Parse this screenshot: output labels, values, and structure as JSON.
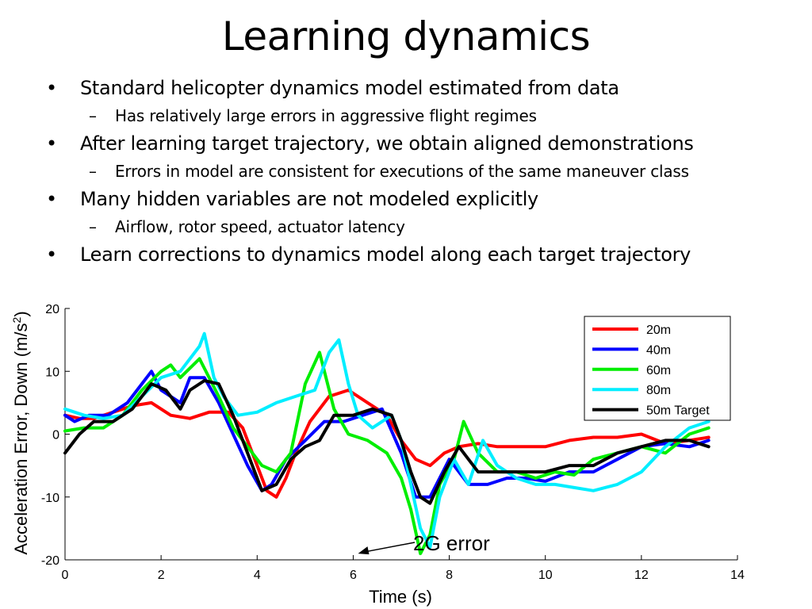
{
  "slide": {
    "title": "Learning dynamics",
    "bullets": [
      {
        "text": "Standard helicopter dynamics model estimated from data",
        "sub": [
          "Has relatively large errors in aggressive flight regimes"
        ]
      },
      {
        "text": "After learning target trajectory, we obtain aligned demonstrations",
        "sub": [
          "Errors in model are consistent for executions of the same maneuver class"
        ]
      },
      {
        "text": "Many hidden variables are not modeled explicitly",
        "sub": [
          "Airflow, rotor speed, actuator latency"
        ]
      },
      {
        "text": "Learn corrections to dynamics model along each target trajectory",
        "sub": []
      }
    ],
    "bullet_symbol": "•",
    "sub_symbol": "–"
  },
  "chart_data": {
    "type": "line",
    "xlabel": "Time (s)",
    "ylabel_main": "Acceleration Error, Down (m/s",
    "ylabel_sup": "2",
    "ylabel_close": ")",
    "xlim": [
      0,
      14
    ],
    "ylim": [
      -20,
      20
    ],
    "xticks": [
      0,
      2,
      4,
      6,
      8,
      10,
      12,
      14
    ],
    "yticks": [
      -20,
      -10,
      0,
      10,
      20
    ],
    "grid": false,
    "legend_position": "top-right",
    "annotation": {
      "text": "2G error",
      "arrow_to": [
        6.1,
        -19
      ]
    },
    "series": [
      {
        "name": "20m",
        "color": "#ff0000",
        "x": [
          0,
          0.3,
          0.6,
          1.0,
          1.4,
          1.8,
          2.2,
          2.6,
          3.0,
          3.4,
          3.7,
          4.0,
          4.2,
          4.4,
          4.6,
          4.8,
          5.1,
          5.5,
          5.9,
          6.3,
          6.7,
          7.0,
          7.3,
          7.6,
          7.9,
          8.2,
          8.6,
          9.0,
          9.5,
          10.0,
          10.5,
          11.0,
          11.5,
          12.0,
          12.5,
          13.0,
          13.4
        ],
        "y": [
          3,
          2.5,
          2.5,
          3.5,
          4.5,
          5,
          3,
          2.5,
          3.5,
          3.5,
          1,
          -5,
          -9,
          -10,
          -7,
          -3,
          2,
          6,
          7,
          5,
          3,
          -1,
          -4,
          -5,
          -3,
          -2,
          -1.5,
          -2,
          -2,
          -2,
          -1,
          -0.5,
          -0.5,
          0,
          -1.5,
          -1,
          -0.5
        ]
      },
      {
        "name": "40m",
        "color": "#0000ff",
        "x": [
          0,
          0.2,
          0.5,
          0.9,
          1.3,
          1.6,
          1.8,
          2.0,
          2.2,
          2.4,
          2.6,
          2.9,
          3.2,
          3.5,
          3.8,
          4.1,
          4.3,
          4.6,
          5.0,
          5.4,
          5.8,
          6.2,
          6.6,
          7.0,
          7.3,
          7.6,
          8.0,
          8.4,
          8.8,
          9.2,
          9.6,
          10.0,
          10.5,
          11.0,
          11.5,
          12.0,
          12.5,
          13.0,
          13.4
        ],
        "y": [
          3,
          2,
          3,
          3,
          5,
          8,
          10,
          7,
          6,
          5,
          9,
          9,
          5,
          0,
          -5,
          -9,
          -8,
          -4,
          -1,
          2,
          2,
          3,
          4,
          -3,
          -10,
          -10,
          -4,
          -8,
          -8,
          -7,
          -7,
          -7.5,
          -6,
          -6,
          -4,
          -2,
          -1.5,
          -2,
          -1
        ]
      },
      {
        "name": "60m",
        "color": "#00ee00",
        "x": [
          0,
          0.4,
          0.8,
          1.2,
          1.6,
          2.0,
          2.2,
          2.4,
          2.8,
          3.2,
          3.5,
          3.8,
          4.1,
          4.4,
          4.7,
          5.0,
          5.3,
          5.6,
          5.9,
          6.3,
          6.7,
          7.0,
          7.2,
          7.4,
          7.6,
          7.8,
          8.1,
          8.3,
          8.6,
          9.0,
          9.4,
          9.8,
          10.2,
          10.6,
          11.0,
          11.5,
          12.0,
          12.5,
          13.0,
          13.4
        ],
        "y": [
          0.5,
          1,
          1,
          3,
          7,
          10,
          11,
          9,
          12,
          6,
          1,
          -2,
          -5,
          -6,
          -3,
          8,
          13,
          4,
          0,
          -1,
          -3,
          -7,
          -12,
          -19,
          -16,
          -8,
          -4,
          2,
          -3,
          -6,
          -6,
          -7,
          -6,
          -6.5,
          -4,
          -3,
          -2,
          -3,
          0,
          1
        ]
      },
      {
        "name": "80m",
        "color": "#00eeff",
        "x": [
          0,
          0.4,
          0.8,
          1.2,
          1.6,
          2.0,
          2.4,
          2.8,
          2.9,
          3.1,
          3.3,
          3.6,
          4.0,
          4.4,
          4.8,
          5.2,
          5.5,
          5.7,
          5.9,
          6.1,
          6.4,
          6.8,
          7.0,
          7.2,
          7.4,
          7.6,
          7.8,
          8.1,
          8.4,
          8.7,
          9.0,
          9.4,
          9.8,
          10.2,
          10.6,
          11.0,
          11.5,
          12.0,
          12.5,
          13.0,
          13.4
        ],
        "y": [
          4,
          3,
          2.5,
          3,
          6,
          9,
          10,
          14,
          16,
          9,
          6,
          3,
          3.5,
          5,
          6,
          7,
          13,
          15,
          8,
          3,
          1,
          3,
          -1,
          -8,
          -15,
          -18,
          -10,
          -4,
          -8,
          -1,
          -5,
          -7,
          -8,
          -8,
          -8.5,
          -9,
          -8,
          -6,
          -2,
          1,
          2
        ]
      },
      {
        "name": "50m Target",
        "color": "#000000",
        "x": [
          0,
          0.3,
          0.6,
          1.0,
          1.4,
          1.8,
          2.1,
          2.4,
          2.6,
          2.9,
          3.2,
          3.5,
          3.8,
          4.0,
          4.1,
          4.4,
          4.7,
          5.0,
          5.3,
          5.6,
          6.0,
          6.4,
          6.8,
          7.0,
          7.2,
          7.4,
          7.6,
          7.9,
          8.2,
          8.6,
          9.0,
          9.5,
          10.0,
          10.5,
          11.0,
          11.5,
          12.0,
          12.5,
          13.0,
          13.4
        ],
        "y": [
          -3,
          0,
          2,
          2,
          4,
          8,
          7,
          4,
          7,
          8.5,
          8,
          3,
          -3,
          -7,
          -9,
          -8,
          -4,
          -2,
          -1,
          3,
          3,
          4,
          3,
          -1,
          -6,
          -10,
          -11,
          -6,
          -2,
          -6,
          -6,
          -6,
          -6,
          -5,
          -5,
          -3,
          -2,
          -1,
          -1,
          -2
        ]
      }
    ]
  }
}
